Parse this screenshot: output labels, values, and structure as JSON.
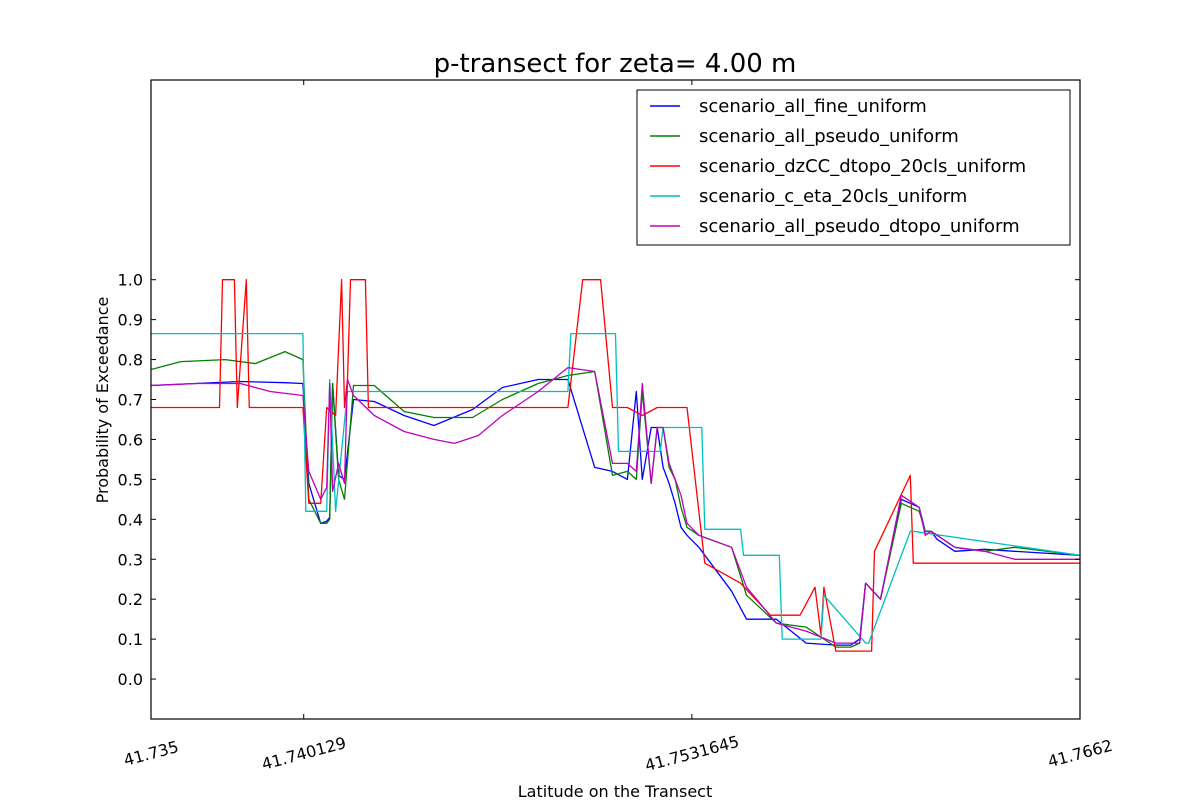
{
  "chart_data": {
    "type": "line",
    "title": "p-transect for zeta= 4.00 m",
    "xlabel": "Latitude on the Transect",
    "ylabel": "Probability of Exceedance",
    "xlim": [
      41.735,
      41.7662
    ],
    "ylim": [
      -0.1,
      1.5
    ],
    "x_ticks": [
      41.735,
      41.740129,
      41.7531645,
      41.7662
    ],
    "x_tick_labels": [
      "41.735",
      "41.740129",
      "41.7531645",
      "41.7662"
    ],
    "y_ticks": [
      0.0,
      0.1,
      0.2,
      0.3,
      0.4,
      0.5,
      0.6,
      0.7,
      0.8,
      0.9,
      1.0
    ],
    "y_tick_labels": [
      "0.0",
      "0.1",
      "0.2",
      "0.3",
      "0.4",
      "0.5",
      "0.6",
      "0.7",
      "0.8",
      "0.9",
      "1.0"
    ],
    "grid": false,
    "legend_position": "top-right",
    "series": [
      {
        "name": "scenario_all_fine_uniform",
        "color": "#0000ff",
        "x": [
          41.735,
          41.7365,
          41.738,
          41.7395,
          41.7401,
          41.7403,
          41.7407,
          41.7409,
          41.741,
          41.7411,
          41.7413,
          41.7415,
          41.7418,
          41.7425,
          41.7435,
          41.7445,
          41.7458,
          41.7468,
          41.748,
          41.749,
          41.7499,
          41.7505,
          41.751,
          41.7513,
          41.7515,
          41.7518,
          41.752,
          41.7522,
          41.7524,
          41.7526,
          41.7528,
          41.753,
          41.7534,
          41.7545,
          41.755,
          41.756,
          41.757,
          41.758,
          41.7585,
          41.7588,
          41.759,
          41.7595,
          41.7602,
          41.7608,
          41.761,
          41.7612,
          41.7614,
          41.762,
          41.763,
          41.764,
          41.7662
        ],
        "y": [
          0.735,
          0.74,
          0.745,
          0.742,
          0.74,
          0.49,
          0.39,
          0.395,
          0.405,
          0.74,
          0.51,
          0.5,
          0.7,
          0.695,
          0.66,
          0.635,
          0.675,
          0.73,
          0.75,
          0.75,
          0.53,
          0.52,
          0.5,
          0.72,
          0.5,
          0.63,
          0.63,
          0.53,
          0.49,
          0.44,
          0.38,
          0.36,
          0.33,
          0.22,
          0.15,
          0.15,
          0.09,
          0.085,
          0.085,
          0.1,
          0.24,
          0.2,
          0.45,
          0.43,
          0.37,
          0.37,
          0.35,
          0.32,
          0.325,
          0.32,
          0.31
        ]
      },
      {
        "name": "scenario_all_pseudo_uniform",
        "color": "#008000",
        "x": [
          41.735,
          41.736,
          41.7375,
          41.7385,
          41.7395,
          41.7401,
          41.7403,
          41.7407,
          41.7409,
          41.741,
          41.7411,
          41.7413,
          41.7415,
          41.7418,
          41.7425,
          41.7435,
          41.7445,
          41.7458,
          41.7468,
          41.748,
          41.749,
          41.7499,
          41.7505,
          41.751,
          41.7513,
          41.7515,
          41.7518,
          41.752,
          41.7522,
          41.7524,
          41.7526,
          41.7528,
          41.753,
          41.7534,
          41.7545,
          41.755,
          41.756,
          41.757,
          41.758,
          41.7585,
          41.7588,
          41.759,
          41.7595,
          41.7602,
          41.7608,
          41.761,
          41.7612,
          41.7614,
          41.762,
          41.763,
          41.764,
          41.7662
        ],
        "y": [
          0.775,
          0.795,
          0.8,
          0.79,
          0.82,
          0.8,
          0.45,
          0.39,
          0.39,
          0.4,
          0.74,
          0.5,
          0.45,
          0.735,
          0.735,
          0.67,
          0.655,
          0.655,
          0.7,
          0.74,
          0.76,
          0.77,
          0.51,
          0.52,
          0.5,
          0.72,
          0.49,
          0.63,
          0.63,
          0.53,
          0.5,
          0.43,
          0.38,
          0.36,
          0.33,
          0.21,
          0.14,
          0.13,
          0.08,
          0.08,
          0.09,
          0.24,
          0.2,
          0.44,
          0.42,
          0.37,
          0.37,
          0.36,
          0.33,
          0.32,
          0.33,
          0.31
        ]
      },
      {
        "name": "scenario_dzCC_dtopo_20cls_uniform",
        "color": "#ff0000",
        "x": [
          41.735,
          41.7373,
          41.7374,
          41.7378,
          41.7379,
          41.7382,
          41.7383,
          41.7385,
          41.7401,
          41.7403,
          41.7407,
          41.7409,
          41.7412,
          41.7414,
          41.7415,
          41.7416,
          41.7417,
          41.7422,
          41.7423,
          41.7435,
          41.7445,
          41.7458,
          41.7468,
          41.748,
          41.749,
          41.7495,
          41.7501,
          41.7505,
          41.751,
          41.7515,
          41.752,
          41.753,
          41.7536,
          41.7548,
          41.7558,
          41.7568,
          41.7573,
          41.7575,
          41.7576,
          41.758,
          41.7592,
          41.7593,
          41.7605,
          41.7606,
          41.7618,
          41.7621,
          41.7662
        ],
        "y": [
          0.68,
          0.68,
          1.0,
          1.0,
          0.68,
          1.0,
          0.68,
          0.68,
          0.68,
          0.44,
          0.44,
          0.68,
          0.66,
          1.0,
          0.68,
          0.75,
          1.0,
          1.0,
          0.68,
          0.68,
          0.68,
          0.68,
          0.68,
          0.68,
          0.68,
          1.0,
          1.0,
          0.68,
          0.68,
          0.66,
          0.68,
          0.68,
          0.29,
          0.24,
          0.16,
          0.16,
          0.23,
          0.11,
          0.23,
          0.07,
          0.07,
          0.32,
          0.51,
          0.29,
          0.29,
          0.29,
          0.29
        ]
      },
      {
        "name": "scenario_c_eta_20cls_uniform",
        "color": "#00bfbf",
        "x": [
          41.735,
          41.7401,
          41.7402,
          41.7409,
          41.741,
          41.7412,
          41.7416,
          41.7426,
          41.749,
          41.7491,
          41.7506,
          41.7507,
          41.7521,
          41.7522,
          41.7535,
          41.7536,
          41.7548,
          41.7549,
          41.7561,
          41.7562,
          41.7575,
          41.7576,
          41.759,
          41.7591,
          41.7605,
          41.7606,
          41.7662
        ],
        "y": [
          0.865,
          0.865,
          0.42,
          0.42,
          0.75,
          0.42,
          0.72,
          0.72,
          0.72,
          0.865,
          0.865,
          0.57,
          0.57,
          0.63,
          0.63,
          0.375,
          0.375,
          0.31,
          0.31,
          0.1,
          0.1,
          0.21,
          0.09,
          0.09,
          0.37,
          0.37,
          0.31
        ]
      },
      {
        "name": "scenario_all_pseudo_dtopo_uniform",
        "color": "#bf00bf",
        "x": [
          41.735,
          41.7365,
          41.738,
          41.739,
          41.7401,
          41.7403,
          41.7407,
          41.7409,
          41.741,
          41.7411,
          41.7413,
          41.7415,
          41.7416,
          41.7418,
          41.7425,
          41.7435,
          41.7445,
          41.7452,
          41.746,
          41.7468,
          41.748,
          41.749,
          41.7499,
          41.7505,
          41.751,
          41.7513,
          41.7515,
          41.7518,
          41.752,
          41.7522,
          41.7524,
          41.7526,
          41.7528,
          41.753,
          41.7534,
          41.7545,
          41.755,
          41.756,
          41.757,
          41.758,
          41.7585,
          41.7588,
          41.759,
          41.7595,
          41.7602,
          41.7608,
          41.761,
          41.7612,
          41.7614,
          41.762,
          41.763,
          41.764,
          41.7662
        ],
        "y": [
          0.735,
          0.74,
          0.74,
          0.72,
          0.71,
          0.52,
          0.45,
          0.48,
          0.74,
          0.47,
          0.54,
          0.49,
          0.75,
          0.71,
          0.66,
          0.62,
          0.6,
          0.59,
          0.61,
          0.66,
          0.72,
          0.78,
          0.77,
          0.54,
          0.54,
          0.52,
          0.74,
          0.49,
          0.63,
          0.63,
          0.54,
          0.5,
          0.46,
          0.39,
          0.36,
          0.33,
          0.23,
          0.14,
          0.12,
          0.09,
          0.09,
          0.09,
          0.24,
          0.2,
          0.46,
          0.43,
          0.36,
          0.37,
          0.36,
          0.33,
          0.32,
          0.3,
          0.3
        ]
      }
    ]
  }
}
